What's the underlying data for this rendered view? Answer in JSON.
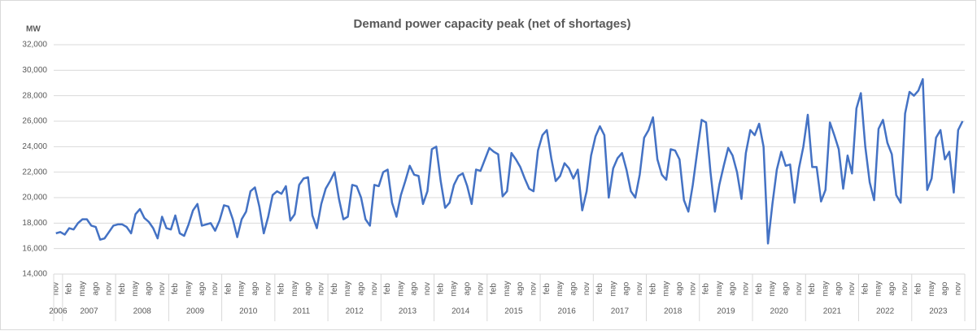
{
  "chart_data": {
    "type": "line",
    "title": "Demand power capacity peak (net of shortages)",
    "y_label": "MW",
    "categories": [
      "nov",
      null,
      null,
      "feb",
      null,
      null,
      "may",
      null,
      null,
      "ago",
      null,
      null,
      "nov",
      null,
      null,
      "feb",
      null,
      null,
      "may",
      null,
      null,
      "ago",
      null,
      null,
      "nov",
      null,
      null,
      "feb",
      null,
      null,
      "may",
      null,
      null,
      "ago",
      null,
      null,
      "nov",
      null,
      null,
      "feb",
      null,
      null,
      "may",
      null,
      null,
      "ago",
      null,
      null,
      "nov",
      null,
      null,
      "feb",
      null,
      null,
      "may",
      null,
      null,
      "ago",
      null,
      null,
      "nov",
      null,
      null,
      "feb",
      null,
      null,
      "may",
      null,
      null,
      "ago",
      null,
      null,
      "nov",
      null,
      null,
      "feb",
      null,
      null,
      "may",
      null,
      null,
      "ago",
      null,
      null,
      "nov",
      null,
      null,
      "feb",
      null,
      null,
      "may",
      null,
      null,
      "ago",
      null,
      null,
      "nov",
      null,
      null,
      "feb",
      null,
      null,
      "may",
      null,
      null,
      "ago",
      null,
      null,
      "nov",
      null,
      null,
      "feb",
      null,
      null,
      "may",
      null,
      null,
      "ago",
      null,
      null,
      "nov",
      null,
      null,
      "feb",
      null,
      null,
      "may",
      null,
      null,
      "ago",
      null,
      null,
      "nov",
      null,
      null,
      "feb",
      null,
      null,
      "may",
      null,
      null,
      "ago",
      null,
      null,
      "nov",
      null,
      null,
      "feb",
      null,
      null,
      "may",
      null,
      null,
      "ago",
      null,
      null,
      "nov",
      null,
      null,
      "feb",
      null,
      null,
      "may",
      null,
      null,
      "ago",
      null,
      null,
      "nov",
      null,
      null,
      "feb",
      null,
      null,
      "may",
      null,
      null,
      "ago",
      null,
      null,
      "nov",
      null,
      null,
      "feb",
      null,
      null,
      "may",
      null,
      null,
      "ago",
      null,
      null,
      "nov",
      null,
      null,
      "feb",
      null,
      null,
      "may",
      null,
      null,
      "ago",
      null,
      null,
      "nov",
      null
    ],
    "years": [
      "2006",
      "2007",
      "2008",
      "2009",
      "2010",
      "2011",
      "2012",
      "2013",
      "2014",
      "2015",
      "2016",
      "2017",
      "2018",
      "2019",
      "2020",
      "2021",
      "2022",
      "2023"
    ],
    "series": [
      {
        "name": "Demand power capacity peak",
        "color": "#4472c4",
        "values": [
          17200,
          17300,
          17100,
          17600,
          17500,
          18000,
          18300,
          18300,
          17800,
          17700,
          16700,
          16800,
          17300,
          17800,
          17900,
          17900,
          17700,
          17200,
          18700,
          19100,
          18400,
          18100,
          17600,
          16800,
          18500,
          17600,
          17500,
          18600,
          17200,
          17000,
          17900,
          19000,
          19500,
          17800,
          17900,
          18000,
          17400,
          18200,
          19400,
          19300,
          18300,
          16900,
          18300,
          18900,
          20500,
          20800,
          19300,
          17200,
          18500,
          20200,
          20500,
          20300,
          20900,
          18200,
          18700,
          21000,
          21500,
          21600,
          18600,
          17600,
          19500,
          20700,
          21300,
          22000,
          19900,
          18300,
          18500,
          21000,
          20900,
          20000,
          18300,
          17800,
          21000,
          20900,
          22000,
          22200,
          19600,
          18500,
          20200,
          21300,
          22500,
          21800,
          21700,
          19500,
          20500,
          23800,
          24000,
          21300,
          19200,
          19600,
          21000,
          21700,
          21900,
          20900,
          19500,
          22200,
          22100,
          23000,
          23900,
          23600,
          23400,
          20100,
          20500,
          23500,
          23000,
          22400,
          21500,
          20700,
          20500,
          23700,
          24900,
          25300,
          23100,
          21300,
          21700,
          22700,
          22300,
          21500,
          22200,
          19000,
          20500,
          23300,
          24800,
          25600,
          24900,
          20000,
          22300,
          23100,
          23500,
          22200,
          20500,
          20000,
          21800,
          24700,
          25300,
          26300,
          23000,
          21800,
          21400,
          23800,
          23700,
          23000,
          19800,
          18900,
          21000,
          23600,
          26100,
          25900,
          22000,
          18900,
          21000,
          22500,
          23900,
          23300,
          22000,
          19900,
          23500,
          25300,
          24900,
          25800,
          24000,
          16400,
          19500,
          22200,
          23600,
          22500,
          22600,
          19600,
          22300,
          24000,
          26500,
          22400,
          22400,
          19700,
          20600,
          25900,
          24900,
          23800,
          20700,
          23300,
          21900,
          27000,
          28200,
          24000,
          21200,
          19800,
          25400,
          26100,
          24300,
          23400,
          20200,
          19600,
          26600,
          28300,
          28000,
          28400,
          29300,
          20600,
          21500,
          24700,
          25300,
          23000,
          23600,
          20400,
          25300,
          26000
        ]
      }
    ],
    "ylim": [
      14000,
      32000
    ],
    "yticks": [
      {
        "value": 14000,
        "label": "14,000"
      },
      {
        "value": 16000,
        "label": "16,000"
      },
      {
        "value": 18000,
        "label": "18,000"
      },
      {
        "value": 20000,
        "label": "20,000"
      },
      {
        "value": 22000,
        "label": "22,000"
      },
      {
        "value": 24000,
        "label": "24,000"
      },
      {
        "value": 26000,
        "label": "26,000"
      },
      {
        "value": 28000,
        "label": "28,000"
      },
      {
        "value": 30000,
        "label": "30,000"
      },
      {
        "value": 32000,
        "label": "32,000"
      }
    ],
    "grid": true
  }
}
